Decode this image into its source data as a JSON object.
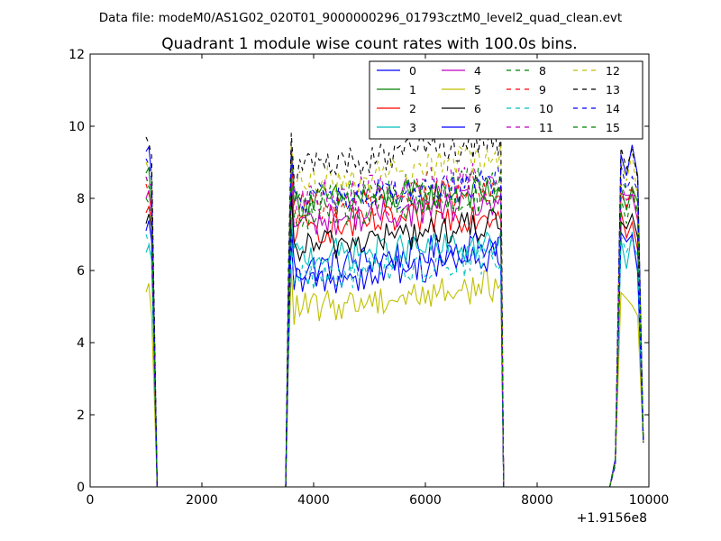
{
  "chart_data": {
    "type": "line",
    "suptitle": "Data file: modeM0/AS1G02_020T01_9000000296_01793cztM0_level2_quad_clean.evt",
    "title": "Quadrant 1 module wise count rates with 100.0s bins.",
    "xlabel": "",
    "ylabel": "",
    "x_offset_label": "+1.9156e8",
    "xlim": [
      0,
      10000
    ],
    "ylim": [
      0,
      12
    ],
    "xticks": [
      0,
      2000,
      4000,
      6000,
      8000,
      10000
    ],
    "yticks": [
      0,
      2,
      4,
      6,
      8,
      10,
      12
    ],
    "xtick_labels": [
      "0",
      "2000",
      "4000",
      "6000",
      "8000",
      "10000"
    ],
    "ytick_labels": [
      "0",
      "2",
      "4",
      "6",
      "8",
      "10",
      "12"
    ],
    "grid": false,
    "legend_position": "top-right",
    "legend_columns": 4,
    "segments": [
      {
        "x_start": 1000,
        "x_end": 1100
      },
      {
        "x_start": 3600,
        "x_end": 7300
      },
      {
        "x_start": 9500,
        "x_end": 9900
      }
    ],
    "gaps": [
      {
        "x_from": 1200,
        "x_to": 3500
      },
      {
        "x_from": 7400,
        "x_to": 9300
      }
    ],
    "series": [
      {
        "name": "0",
        "color": "#0000ff",
        "style": "solid",
        "level_start": 9.3,
        "level_end": 9.4,
        "level_mid": 6.0,
        "level_mid_end": 6.8
      },
      {
        "name": "1",
        "color": "#008000",
        "style": "solid",
        "level_start": 8.7,
        "level_end": 8.5,
        "level_mid": 7.9,
        "level_mid_end": 8.2
      },
      {
        "name": "2",
        "color": "#ff0000",
        "style": "solid",
        "level_start": 7.6,
        "level_end": 7.8,
        "level_mid": 7.1,
        "level_mid_end": 7.6
      },
      {
        "name": "3",
        "color": "#00bfbf",
        "style": "solid",
        "level_start": 6.5,
        "level_end": 7.0,
        "level_mid": 6.4,
        "level_mid_end": 6.7
      },
      {
        "name": "4",
        "color": "#bf00bf",
        "style": "solid",
        "level_start": 8.0,
        "level_end": 8.3,
        "level_mid": 7.3,
        "level_mid_end": 7.9
      },
      {
        "name": "5",
        "color": "#bfbf00",
        "style": "solid",
        "level_start": 5.4,
        "level_end": 5.5,
        "level_mid": 4.9,
        "level_mid_end": 5.6
      },
      {
        "name": "6",
        "color": "#000000",
        "style": "solid",
        "level_start": 7.3,
        "level_end": 7.5,
        "level_mid": 6.6,
        "level_mid_end": 7.3
      },
      {
        "name": "7",
        "color": "#0000ff",
        "style": "solid",
        "level_start": 7.1,
        "level_end": 7.2,
        "level_mid": 5.6,
        "level_mid_end": 6.4
      },
      {
        "name": "8",
        "color": "#008000",
        "style": "dashed",
        "level_start": 8.6,
        "level_end": 8.7,
        "level_mid": 7.9,
        "level_mid_end": 8.5
      },
      {
        "name": "9",
        "color": "#ff0000",
        "style": "dashed",
        "level_start": 8.4,
        "level_end": 8.3,
        "level_mid": 7.7,
        "level_mid_end": 8.3
      },
      {
        "name": "10",
        "color": "#00bfbf",
        "style": "dashed",
        "level_start": 7.0,
        "level_end": 7.1,
        "level_mid": 5.8,
        "level_mid_end": 6.3
      },
      {
        "name": "11",
        "color": "#bf00bf",
        "style": "dashed",
        "level_start": 8.6,
        "level_end": 8.6,
        "level_mid": 8.0,
        "level_mid_end": 8.6
      },
      {
        "name": "12",
        "color": "#bfbf00",
        "style": "dashed",
        "level_start": 9.0,
        "level_end": 9.2,
        "level_mid": 8.3,
        "level_mid_end": 9.2
      },
      {
        "name": "13",
        "color": "#000000",
        "style": "dashed",
        "level_start": 9.7,
        "level_end": 9.6,
        "level_mid": 8.8,
        "level_mid_end": 9.6
      },
      {
        "name": "14",
        "color": "#0000ff",
        "style": "dashed",
        "level_start": 9.1,
        "level_end": 9.1,
        "level_mid": 7.9,
        "level_mid_end": 8.4
      },
      {
        "name": "15",
        "color": "#008000",
        "style": "dashed",
        "level_start": 8.0,
        "level_end": 8.2,
        "level_mid": 7.5,
        "level_mid_end": 8.0
      }
    ]
  }
}
